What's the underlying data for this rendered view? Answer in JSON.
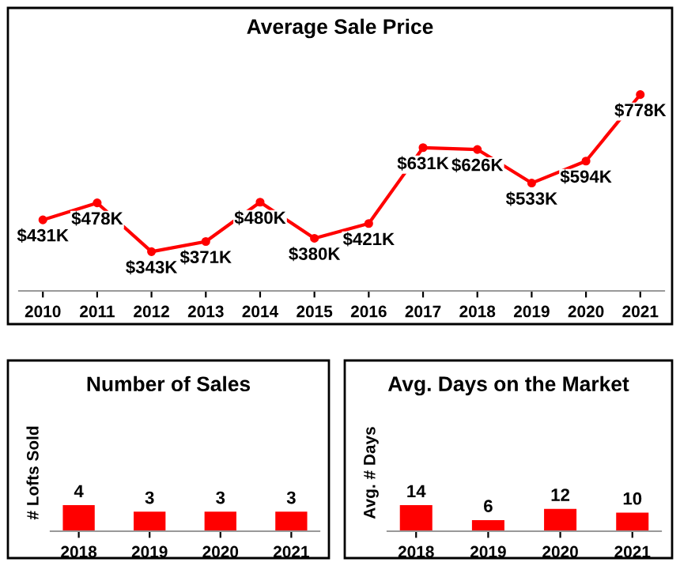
{
  "chart_data": [
    {
      "type": "line",
      "title": "Average Sale Price",
      "categories": [
        "2010",
        "2011",
        "2012",
        "2013",
        "2014",
        "2015",
        "2016",
        "2017",
        "2018",
        "2019",
        "2020",
        "2021"
      ],
      "values": [
        431,
        478,
        343,
        371,
        480,
        380,
        421,
        631,
        626,
        533,
        594,
        778
      ],
      "value_labels": [
        "$431K",
        "$478K",
        "$343K",
        "$371K",
        "$480K",
        "$380K",
        "$421K",
        "$631K",
        "$626K",
        "$533K",
        "$594K",
        "$778K"
      ],
      "color": "#ff0000",
      "marker": "circle",
      "line_style": "solid",
      "grid": false,
      "tick_labels": "x"
    },
    {
      "type": "bar",
      "title": "Number of Sales",
      "ylabel": "# Lofts Sold",
      "categories": [
        "2018",
        "2019",
        "2020",
        "2021"
      ],
      "values": [
        4,
        3,
        3,
        3
      ],
      "color": "#ff0000",
      "data_labels": true,
      "grid": false,
      "tick_labels": "x"
    },
    {
      "type": "bar",
      "title": "Avg. Days on the Market",
      "ylabel": "Avg. # Days",
      "categories": [
        "2018",
        "2019",
        "2020",
        "2021"
      ],
      "values": [
        14,
        6,
        12,
        10
      ],
      "color": "#ff0000",
      "data_labels": true,
      "grid": false,
      "tick_labels": "x"
    }
  ]
}
